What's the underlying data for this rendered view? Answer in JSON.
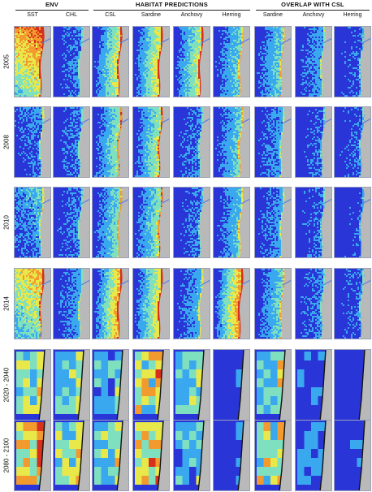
{
  "header": {
    "groups": [
      {
        "title": "ENV",
        "columns": [
          "SST",
          "CHL"
        ]
      },
      {
        "title": "HABITAT PREDICTIONS",
        "columns": [
          "CSL",
          "Sardine",
          "Anchovy",
          "Herring"
        ]
      },
      {
        "title": "OVERLAP WITH CSL",
        "columns": [
          "Sardine",
          "Anchovy",
          "Herring"
        ]
      }
    ]
  },
  "rows": [
    {
      "label": "2005",
      "kind": "satellite"
    },
    {
      "label": "2008",
      "kind": "satellite"
    },
    {
      "label": "2010",
      "kind": "satellite"
    },
    {
      "label": "2014",
      "kind": "satellite"
    },
    {
      "label": "2020 - 2040",
      "kind": "projection"
    },
    {
      "label": "2080 - 2100",
      "kind": "projection"
    }
  ],
  "palette": {
    "low": "#2a35d8",
    "mid_low": "#39a8ee",
    "mid": "#7fe0c0",
    "mid_high": "#e8e84a",
    "high": "#f29a2e",
    "max": "#d8301c",
    "land": "#b9b9b9"
  }
}
